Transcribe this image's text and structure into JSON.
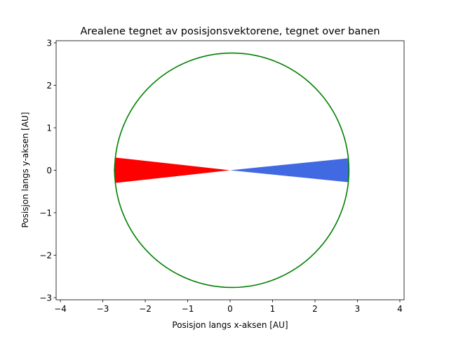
{
  "chart_data": {
    "type": "scatter",
    "title": "Arealene tegnet av posisjonsvektorene, tegnet over banen",
    "xlabel": "Posisjon langs x-aksen [AU]",
    "ylabel": "Posisjon langs y-aksen [AU]",
    "xlim": [
      -4.1,
      4.1
    ],
    "ylim": [
      -3.05,
      3.05
    ],
    "xticks": [
      -4,
      -3,
      -2,
      -1,
      0,
      1,
      2,
      3,
      4
    ],
    "xtick_labels": [
      "−4",
      "−3",
      "−2",
      "−1",
      "0",
      "1",
      "2",
      "3",
      "4"
    ],
    "yticks": [
      -3,
      -2,
      -1,
      0,
      1,
      2,
      3
    ],
    "ytick_labels": [
      "−3",
      "−2",
      "−1",
      "0",
      "1",
      "2",
      "3"
    ],
    "grid": false,
    "orbit": {
      "color": "#008000",
      "center": [
        0.04,
        0.0
      ],
      "rx": 2.76,
      "ry": 2.76
    },
    "areas": [
      {
        "color": "#ff0000",
        "origin": [
          0.0,
          0.0
        ],
        "arc_points": [
          [
            -2.71,
            0.3
          ],
          [
            -2.73,
            0.15
          ],
          [
            -2.74,
            0.0
          ],
          [
            -2.73,
            -0.15
          ],
          [
            -2.71,
            -0.3
          ]
        ]
      },
      {
        "color": "#4169e1",
        "origin": [
          0.0,
          0.0
        ],
        "arc_points": [
          [
            2.78,
            0.28
          ],
          [
            2.8,
            0.14
          ],
          [
            2.8,
            0.0
          ],
          [
            2.8,
            -0.14
          ],
          [
            2.78,
            -0.28
          ]
        ]
      }
    ]
  }
}
